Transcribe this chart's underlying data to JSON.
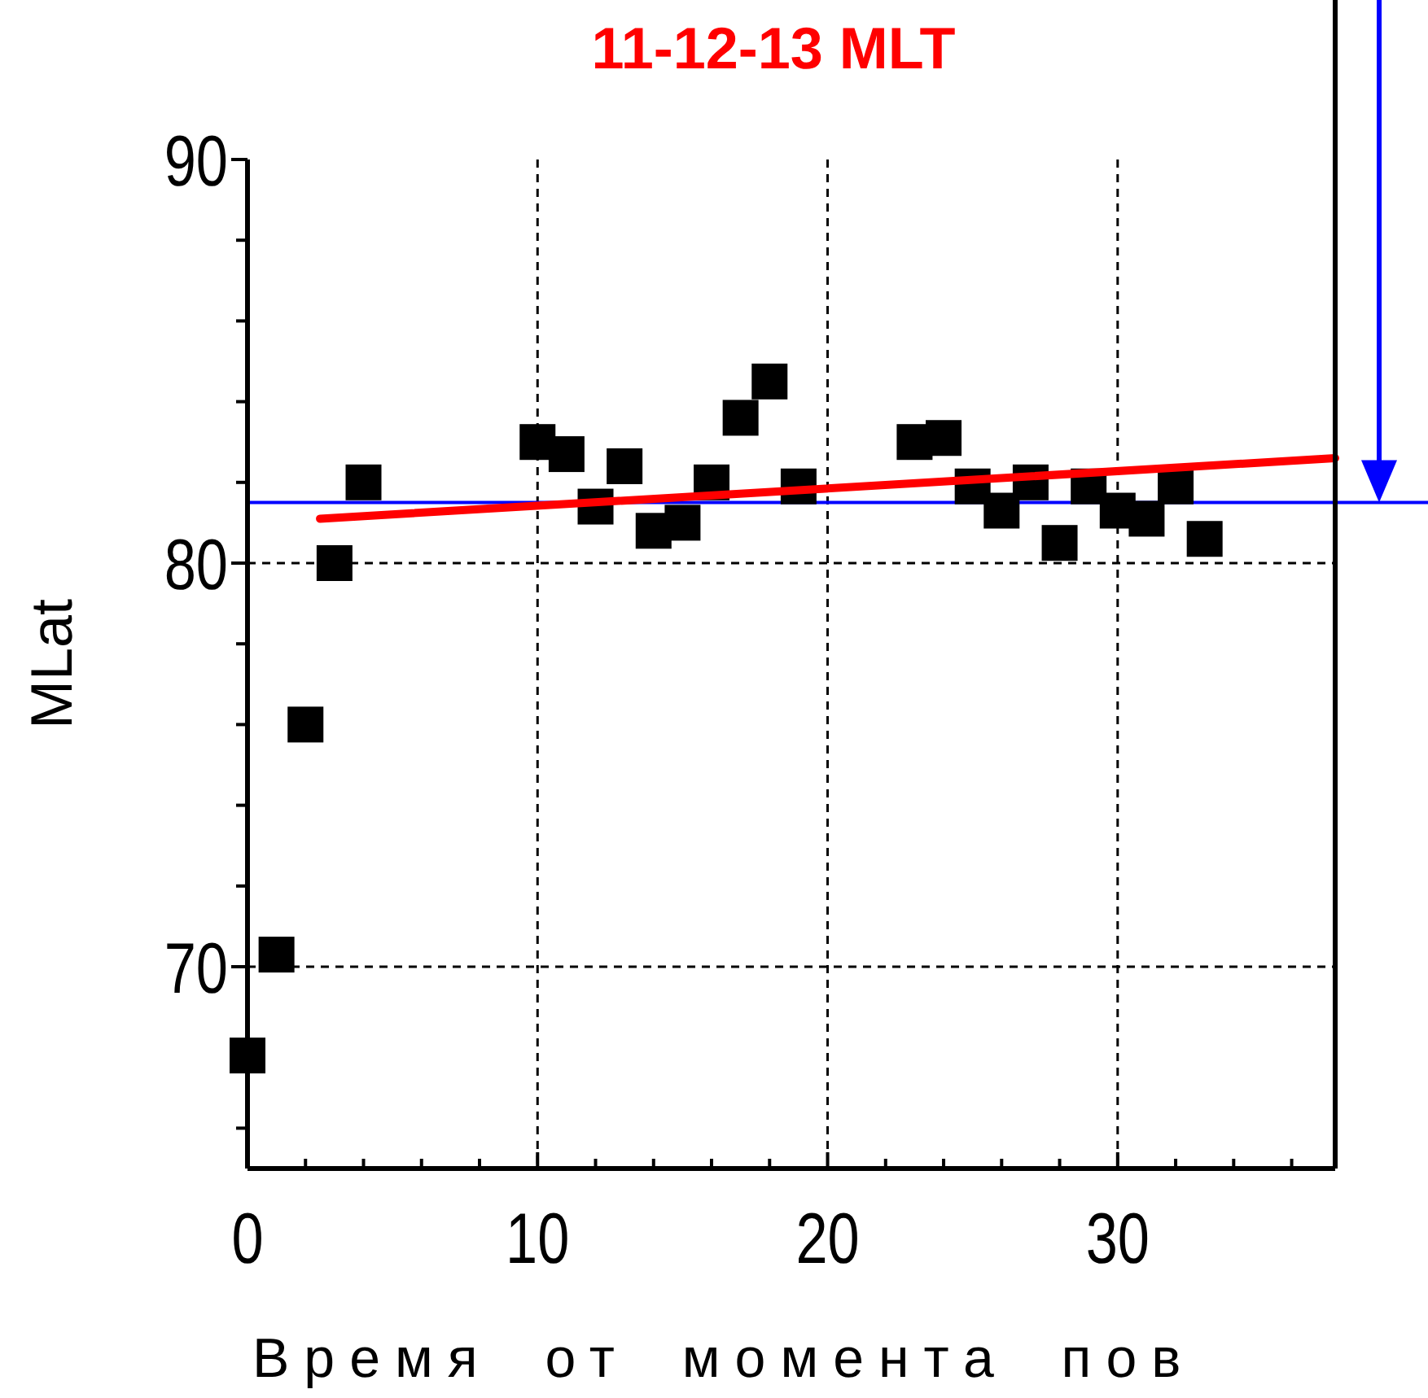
{
  "chart_data": {
    "type": "scatter",
    "title": "11-12-13  MLT",
    "xlabel": "Время от момента пов",
    "ylabel": "MLat",
    "xlim": [
      0,
      37.5
    ],
    "ylim": [
      65,
      90
    ],
    "xticks": [
      0,
      {
        "value": 2,
        "label": null
      },
      {
        "value": 4,
        "label": null
      },
      {
        "value": 6,
        "label": null
      },
      {
        "value": 8,
        "label": null
      },
      10,
      {
        "value": 12,
        "label": null
      },
      {
        "value": 14,
        "label": null
      },
      {
        "value": 16,
        "label": null
      },
      {
        "value": 18,
        "label": null
      },
      20,
      {
        "value": 22,
        "label": null
      },
      {
        "value": 24,
        "label": null
      },
      {
        "value": 26,
        "label": null
      },
      {
        "value": 28,
        "label": null
      },
      30,
      {
        "value": 32,
        "label": null
      },
      {
        "value": 34,
        "label": null
      },
      {
        "value": 36,
        "label": null
      }
    ],
    "yticks": [
      {
        "value": 66,
        "label": null
      },
      {
        "value": 68,
        "label": null
      },
      70,
      {
        "value": 72,
        "label": null
      },
      {
        "value": 74,
        "label": null
      },
      {
        "value": 76,
        "label": null
      },
      {
        "value": 78,
        "label": null
      },
      80,
      {
        "value": 82,
        "label": null
      },
      {
        "value": 84,
        "label": null
      },
      {
        "value": 86,
        "label": null
      },
      {
        "value": 88,
        "label": null
      },
      90
    ],
    "grid": true,
    "series": [
      {
        "marker": "square",
        "color": "#000000",
        "x": [
          0,
          1,
          2,
          3,
          4,
          10,
          11,
          12,
          13,
          14,
          15,
          16,
          17,
          18,
          19,
          23,
          24,
          25,
          26,
          27,
          28,
          29,
          30,
          31,
          32,
          33
        ],
        "values": [
          67.8,
          70.3,
          76.0,
          80.0,
          82.0,
          83.0,
          82.7,
          81.4,
          82.4,
          80.8,
          81.0,
          82.0,
          83.6,
          84.5,
          81.9,
          83.0,
          83.1,
          81.9,
          81.3,
          82.0,
          80.5,
          81.9,
          81.3,
          81.1,
          81.9,
          80.6
        ]
      },
      {
        "type": "line",
        "marker": "none",
        "color": "#ff0000",
        "x": [
          2.5,
          37.5
        ],
        "values": [
          81.1,
          82.6
        ]
      }
    ],
    "ref_lines": [
      {
        "axis": "y",
        "value": 81.5,
        "color": "#0000ff",
        "line_style": "solid"
      }
    ]
  }
}
